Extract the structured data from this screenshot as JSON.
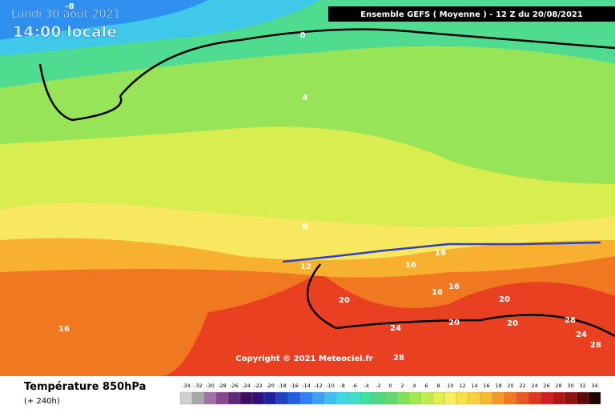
{
  "header": {
    "date": "Lundi 30 août 2021",
    "time": "14:00 locale",
    "title": "Ensemble GEFS  ( Moyenne )  -  12 Z du 20/08/2021",
    "copyright": "Copyright © 2021 Meteociel.fr"
  },
  "legend": {
    "title": "Température 850hPa",
    "lead": "(+ 240h)",
    "ticks": [
      -34,
      -32,
      -30,
      -28,
      -26,
      -24,
      -22,
      -20,
      -18,
      -16,
      -14,
      -12,
      -10,
      -8,
      -6,
      -4,
      -2,
      0,
      2,
      4,
      6,
      8,
      10,
      12,
      14,
      16,
      18,
      20,
      22,
      24,
      26,
      28,
      30,
      32,
      34
    ],
    "colors": [
      "#d0d0d0",
      "#a8a8a8",
      "#a070a8",
      "#884890",
      "#602878",
      "#401060",
      "#301080",
      "#2020a0",
      "#2040c0",
      "#2060e0",
      "#3080f0",
      "#40a0f0",
      "#40c0f0",
      "#40d8e8",
      "#40e0c8",
      "#40e0a0",
      "#50d880",
      "#60d870",
      "#80e060",
      "#a0e850",
      "#c0ec50",
      "#e0f050",
      "#f8f060",
      "#f8e040",
      "#f8d040",
      "#f8b830",
      "#f89828",
      "#f07820",
      "#e85820",
      "#e03820",
      "#d02020",
      "#b01818",
      "#901010",
      "#600808",
      "#200000"
    ]
  },
  "contour_labels": [
    -8,
    0,
    4,
    8,
    12,
    16,
    16,
    16,
    16,
    16,
    20,
    20,
    20,
    20,
    24,
    24,
    28,
    28,
    28
  ]
}
